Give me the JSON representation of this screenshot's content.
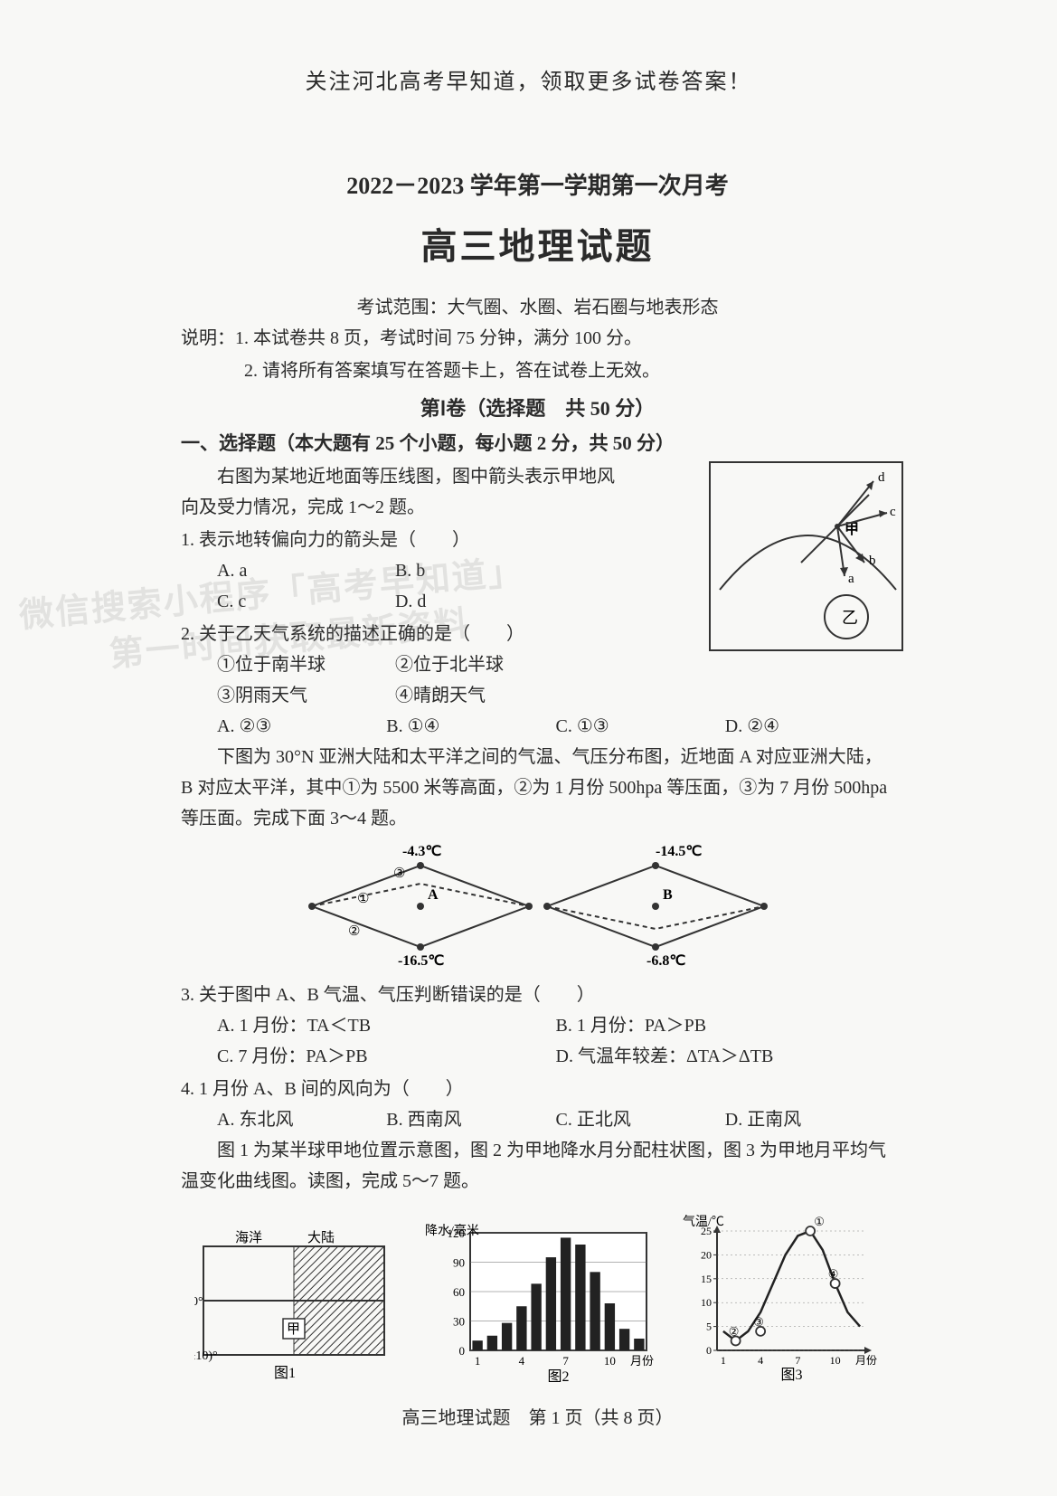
{
  "header_note": "关注河北高考早知道，领取更多试卷答案！",
  "exam_year": "2022－2023 学年第一学期第一次月考",
  "exam_title": "高三地理试题",
  "scope": "考试范围：大气圈、水圈、岩石圈与地表形态",
  "instructions": [
    "说明：1. 本试卷共 8 页，考试时间 75 分钟，满分 100 分。",
    "2. 请将所有答案填写在答题卡上，答在试卷上无效。"
  ],
  "section1_label": "第Ⅰ卷（选择题　共 50 分）",
  "section1_head": "一、选择题（本大题有 25 个小题，每小题 2 分，共 50 分）",
  "intro1_2": "右图为某地近地面等压线图，图中箭头表示甲地风向及受力情况，完成 1～2 题。",
  "q1": "1. 表示地转偏向力的箭头是（　　）",
  "q1_opts": {
    "A": "A. a",
    "B": "B. b",
    "C": "C. c",
    "D": "D. d"
  },
  "q2": "2. 关于乙天气系统的描述正确的是（　　）",
  "q2_subs": {
    "s1": "①位于南半球",
    "s2": "②位于北半球",
    "s3": "③阴雨天气",
    "s4": "④晴朗天气"
  },
  "q2_opts": {
    "A": "A. ②③",
    "B": "B. ①④",
    "C": "C. ①③",
    "D": "D. ②④"
  },
  "intro3_4": "下图为 30°N 亚洲大陆和太平洋之间的气温、气压分布图，近地面 A 对应亚洲大陆，B 对应太平洋，其中①为 5500 米等高面，②为 1 月份 500hpa 等压面，③为 7 月份 500hpa 等压面。完成下面 3～4 题。",
  "q3": "3. 关于图中 A、B 气温、气压判断错误的是（　　）",
  "q3_opts": {
    "A": "A. 1 月份：TA＜TB",
    "B": "B. 1 月份：PA＞PB",
    "C": "C. 7 月份：PA＞PB",
    "D": "D. 气温年较差：ΔTA＞ΔTB"
  },
  "q4": "4. 1 月份 A、B 间的风向为（　　）",
  "q4_opts": {
    "A": "A. 东北风",
    "B": "B. 西南风",
    "C": "C. 正北风",
    "D": "D. 正南风"
  },
  "intro5_7": "图 1 为某半球甲地位置示意图，图 2 为甲地降水月分配柱状图，图 3 为甲地月平均气温变化曲线图。读图，完成 5～7 题。",
  "footer": "高三地理试题　第 1 页（共 8 页）",
  "watermarks": {
    "w1": "微信搜索小程序「高考早知道」",
    "w2": "第一时间获取最新资料"
  },
  "diagram1": {
    "type": "pressure-map",
    "labels": {
      "a": "a",
      "b": "b",
      "c": "c",
      "d": "d",
      "jia": "甲",
      "yi": "乙"
    },
    "stroke": "#333",
    "fill": "#fff"
  },
  "diagram2": {
    "type": "cross-section",
    "temps": {
      "t1": "-4.3℃",
      "t2": "-14.5℃",
      "t3": "-16.5℃",
      "t4": "-6.8℃"
    },
    "labels": {
      "A": "A",
      "B": "B",
      "l1": "①",
      "l2": "②",
      "l3": "③"
    },
    "stroke": "#333"
  },
  "fig1": {
    "type": "map-schematic",
    "labels": {
      "ocean": "海洋",
      "land": "大陆",
      "jia": "甲",
      "lat30": "30°",
      "latband": "(30±10)°",
      "caption": "图1"
    },
    "hatch_color": "#333",
    "bg": "#fff"
  },
  "fig2": {
    "type": "bar",
    "xlabel": "月份",
    "ylabel": "降水/毫米",
    "xticks": [
      1,
      4,
      7,
      10
    ],
    "yticks": [
      0,
      30,
      60,
      90,
      120
    ],
    "values": [
      10,
      15,
      28,
      45,
      68,
      95,
      115,
      108,
      80,
      48,
      22,
      12
    ],
    "bar_color": "#222",
    "grid_color": "#666",
    "bg": "#fff",
    "caption": "图2"
  },
  "fig3": {
    "type": "line",
    "ylabel": "气温/℃",
    "xticks": [
      1,
      4,
      7,
      10
    ],
    "yticks": [
      0,
      5,
      10,
      15,
      20,
      25
    ],
    "series_markers": [
      "①",
      "②",
      "③",
      "④"
    ],
    "curve_points": [
      4,
      2,
      4,
      8,
      14,
      20,
      24,
      25,
      21,
      14,
      8,
      5
    ],
    "line_color": "#222",
    "grid_color": "#666",
    "caption": "图3",
    "xlabel": "月份"
  }
}
